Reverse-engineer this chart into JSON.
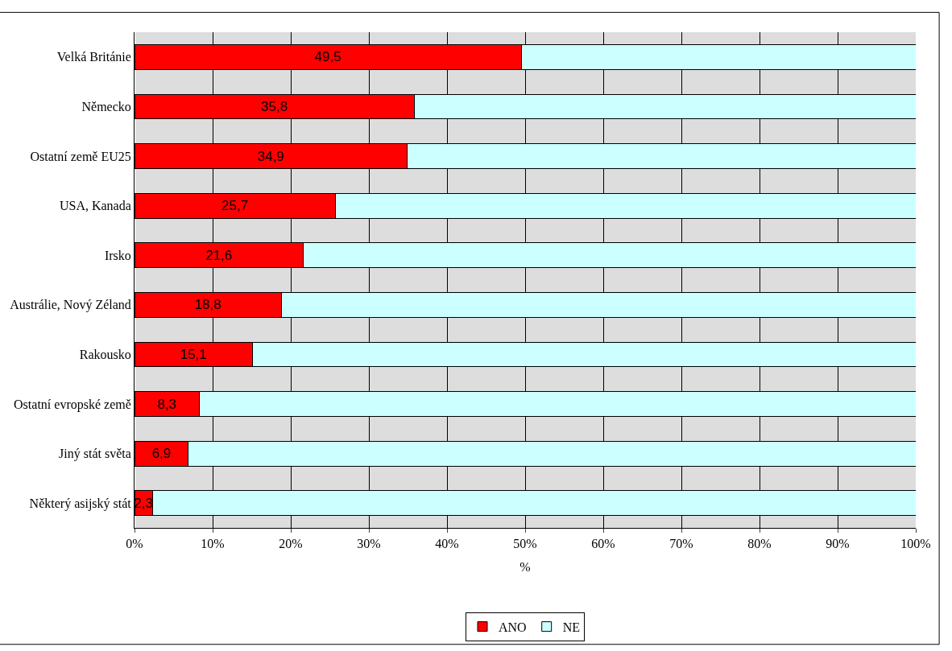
{
  "chart_data": {
    "type": "bar",
    "orientation": "horizontal",
    "stacked": true,
    "xlabel": "%",
    "categories": [
      "Velká Británie",
      "Německo",
      "Ostatní země EU25",
      "USA, Kanada",
      "Irsko",
      "Austrálie, Nový Zéland",
      "Rakousko",
      "Ostatní evropské země",
      "Jiný stát světa",
      "Některý asijský stát"
    ],
    "series": [
      {
        "name": "ANO",
        "color": "#ff0000",
        "values": [
          49.5,
          35.8,
          34.9,
          25.7,
          21.6,
          18.8,
          15.1,
          8.3,
          6.9,
          2.3
        ],
        "value_labels": [
          "49,5",
          "35,8",
          "34,9",
          "25,7",
          "21,6",
          "18,8",
          "15,1",
          "8,3",
          "6,9",
          "2,3"
        ]
      },
      {
        "name": "NE",
        "color": "#ccffff",
        "values": [
          50.5,
          64.2,
          65.1,
          74.3,
          78.4,
          81.2,
          84.9,
          91.7,
          93.1,
          97.7
        ]
      }
    ],
    "xlim": [
      0,
      100
    ],
    "xticks": [
      {
        "value": 0,
        "label": "0%"
      },
      {
        "value": 10,
        "label": "10%"
      },
      {
        "value": 20,
        "label": "20%"
      },
      {
        "value": 30,
        "label": "30%"
      },
      {
        "value": 40,
        "label": "40%"
      },
      {
        "value": 50,
        "label": "50%"
      },
      {
        "value": 60,
        "label": "60%"
      },
      {
        "value": 70,
        "label": "70%"
      },
      {
        "value": 80,
        "label": "80%"
      },
      {
        "value": 90,
        "label": "90%"
      },
      {
        "value": 100,
        "label": "100%"
      }
    ],
    "grid": "x",
    "legend": "bottom"
  }
}
